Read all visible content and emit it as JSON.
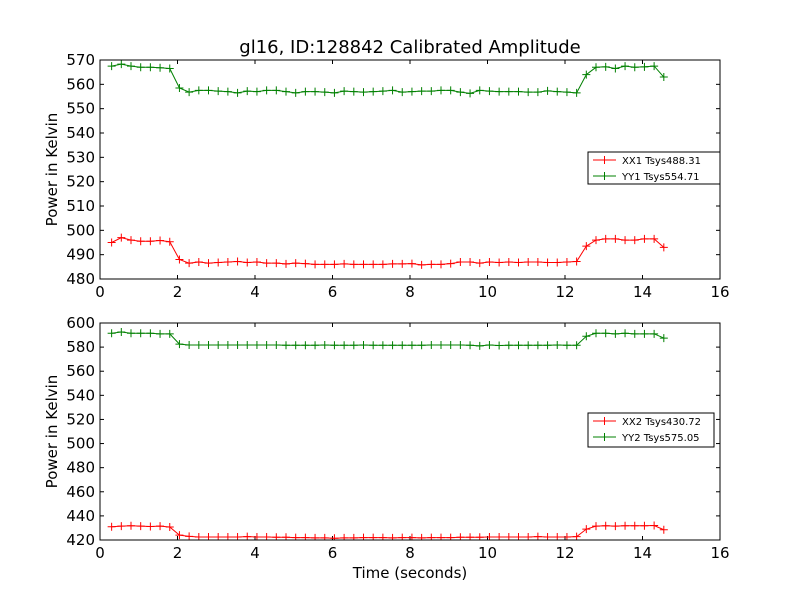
{
  "figure": {
    "title": "gl16, ID:128842 Calibrated Amplitude",
    "xlabel": "Time (seconds)"
  },
  "chart_data": [
    {
      "type": "line",
      "title": "gl16, ID:128842 Calibrated Amplitude",
      "xlabel": "",
      "ylabel": "Power in Kelvin",
      "xlim": [
        0,
        16
      ],
      "ylim": [
        480,
        570
      ],
      "xticks": [
        0,
        2,
        4,
        6,
        8,
        10,
        12,
        14,
        16
      ],
      "yticks": [
        480,
        490,
        500,
        510,
        520,
        530,
        540,
        550,
        560,
        570
      ],
      "grid": false,
      "legend_position": "right",
      "marker": "plus",
      "x": [
        0.3,
        0.55,
        0.8,
        1.05,
        1.3,
        1.55,
        1.8,
        2.05,
        2.3,
        2.55,
        2.8,
        3.05,
        3.3,
        3.55,
        3.8,
        4.05,
        4.3,
        4.55,
        4.8,
        5.05,
        5.3,
        5.55,
        5.8,
        6.05,
        6.3,
        6.55,
        6.8,
        7.05,
        7.3,
        7.55,
        7.8,
        8.05,
        8.3,
        8.55,
        8.8,
        9.05,
        9.3,
        9.55,
        9.8,
        10.05,
        10.3,
        10.55,
        10.8,
        11.05,
        11.3,
        11.55,
        11.8,
        12.05,
        12.3,
        12.55,
        12.8,
        13.05,
        13.3,
        13.55,
        13.8,
        14.05,
        14.3,
        14.55
      ],
      "series": [
        {
          "name": "XX1 Tsys488.31",
          "color": "#ff0000",
          "values": [
            495,
            497,
            496,
            495.5,
            495.5,
            495.8,
            495.3,
            488,
            486.5,
            487,
            486.5,
            486.8,
            487,
            487.2,
            486.8,
            487,
            486.5,
            486.5,
            486.2,
            486.5,
            486.3,
            486,
            486,
            486,
            486.2,
            486,
            486,
            486,
            486,
            486.2,
            486.2,
            486.3,
            485.8,
            486,
            486,
            486.3,
            487,
            487,
            486.5,
            487,
            486.8,
            487,
            486.8,
            487,
            487,
            486.8,
            486.8,
            487,
            487.2,
            493.5,
            496,
            496.5,
            496.5,
            496,
            496,
            496.5,
            496.5,
            493
          ]
        },
        {
          "name": "YY1 Tsys554.71",
          "color": "#008000",
          "values": [
            567.5,
            568.3,
            567.5,
            567,
            567,
            566.8,
            566.5,
            558.5,
            556.8,
            557.5,
            557.5,
            557.2,
            557,
            556.5,
            557.2,
            557,
            557.5,
            557.5,
            557,
            556.5,
            557,
            557,
            556.8,
            556.5,
            557.2,
            557,
            556.8,
            557,
            557.2,
            557.5,
            556.8,
            557,
            557.2,
            557.2,
            557.5,
            557.5,
            556.8,
            556.3,
            557.5,
            557.2,
            557,
            557,
            557,
            556.8,
            556.8,
            557.3,
            557,
            556.8,
            556.5,
            564,
            567,
            567.2,
            566.5,
            567.5,
            567,
            567.2,
            567.5,
            563
          ]
        }
      ]
    },
    {
      "type": "line",
      "title": "",
      "xlabel": "Time (seconds)",
      "ylabel": "Power in Kelvin",
      "xlim": [
        0,
        16
      ],
      "ylim": [
        420,
        600
      ],
      "xticks": [
        0,
        2,
        4,
        6,
        8,
        10,
        12,
        14,
        16
      ],
      "yticks": [
        420,
        440,
        460,
        480,
        500,
        520,
        540,
        560,
        580,
        600
      ],
      "grid": false,
      "legend_position": "right",
      "marker": "plus",
      "x": [
        0.3,
        0.55,
        0.8,
        1.05,
        1.3,
        1.55,
        1.8,
        2.05,
        2.3,
        2.55,
        2.8,
        3.05,
        3.3,
        3.55,
        3.8,
        4.05,
        4.3,
        4.55,
        4.8,
        5.05,
        5.3,
        5.55,
        5.8,
        6.05,
        6.3,
        6.55,
        6.8,
        7.05,
        7.3,
        7.55,
        7.8,
        8.05,
        8.3,
        8.55,
        8.8,
        9.05,
        9.3,
        9.55,
        9.8,
        10.05,
        10.3,
        10.55,
        10.8,
        11.05,
        11.3,
        11.55,
        11.8,
        12.05,
        12.3,
        12.55,
        12.8,
        13.05,
        13.3,
        13.55,
        13.8,
        14.05,
        14.3,
        14.55
      ],
      "series": [
        {
          "name": "XX2 Tsys430.72",
          "color": "#ff0000",
          "values": [
            431,
            431.5,
            431.8,
            431.5,
            431.2,
            431.5,
            430.8,
            424,
            423,
            422.5,
            422.5,
            422.5,
            422.5,
            422.5,
            422.8,
            422.5,
            422.5,
            422.3,
            422.3,
            422,
            422,
            421.8,
            421.8,
            421.5,
            421.8,
            421.8,
            422,
            422,
            422,
            421.8,
            422,
            422,
            421.8,
            422,
            422,
            422,
            422.3,
            422.3,
            422.3,
            422.5,
            422.5,
            422.5,
            422.5,
            422.5,
            422.8,
            422.5,
            422.5,
            422.5,
            422.8,
            429,
            431.5,
            431.8,
            431.5,
            431.8,
            431.8,
            431.8,
            432,
            428.5
          ]
        },
        {
          "name": "YY2 Tsys575.05",
          "color": "#008000",
          "values": [
            591.5,
            592.5,
            591.5,
            591.5,
            591.5,
            591,
            591,
            582.5,
            581.8,
            581.8,
            581.8,
            581.8,
            581.8,
            581.8,
            581.8,
            581.8,
            581.8,
            581.8,
            581.5,
            581.5,
            581.5,
            581.5,
            581.8,
            581.5,
            581.5,
            581.5,
            581.8,
            581.5,
            581.5,
            581.5,
            581.5,
            581.5,
            581.5,
            581.8,
            581.8,
            581.8,
            581.8,
            581.5,
            581,
            581.8,
            581.3,
            581.5,
            581.5,
            581.5,
            581.5,
            581.5,
            581.8,
            581.5,
            581.5,
            589,
            591.5,
            591.5,
            591,
            591.5,
            591,
            591,
            591,
            587.5
          ]
        }
      ]
    }
  ]
}
